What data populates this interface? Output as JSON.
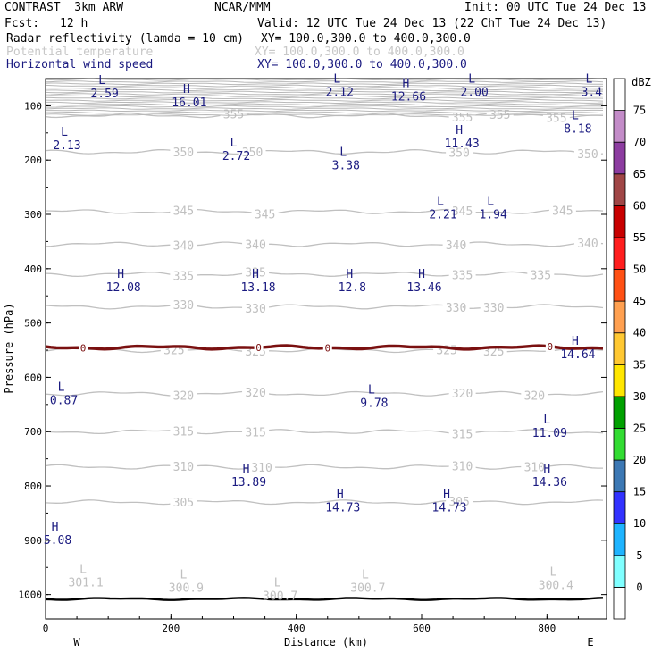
{
  "header": {
    "model": "CONTRAST  3km ARW",
    "org": "NCAR/MMM",
    "init": "Init: 00 UTC Tue 24 Dec 13",
    "fcst_label": "Fcst:",
    "fcst_value": "12 h",
    "valid": "Valid: 12 UTC Tue 24 Dec 13 (22 ChT Tue 24 Dec 13)",
    "fields": [
      {
        "name": "Radar reflectivity (lamda = 10 cm)",
        "xy": "XY= 100.0,300.0 to 400.0,300.0",
        "color": "#000000"
      },
      {
        "name": "Potential temperature",
        "xy": "XY= 100.0,300.0 to 400.0,300.0",
        "color": "#c8c8c8"
      },
      {
        "name": "Horizontal wind speed",
        "xy": "XY= 100.0,300.0 to 400.0,300.0",
        "color": "#1a1a80"
      }
    ]
  },
  "chart_data": {
    "type": "vertical cross-section contour",
    "xlabel": "Distance (km)",
    "ylabel": "Pressure (hPa)",
    "xlim": [
      0,
      895
    ],
    "ylim": [
      1045,
      50
    ],
    "xticks": [
      0,
      200,
      400,
      600,
      800
    ],
    "yticks": [
      100,
      200,
      300,
      400,
      500,
      600,
      700,
      800,
      900,
      1000
    ],
    "left_end_label": "W",
    "right_end_label": "E",
    "theta_contours": [
      {
        "value": 305,
        "p": 830,
        "labels": [
          {
            "x": 220,
            "text": "305"
          },
          {
            "x": 660,
            "text": "305"
          }
        ]
      },
      {
        "value": 310,
        "p": 765,
        "labels": [
          {
            "x": 220,
            "text": "310"
          },
          {
            "x": 345,
            "text": "310"
          },
          {
            "x": 665,
            "text": "310"
          },
          {
            "x": 780,
            "text": "310"
          }
        ]
      },
      {
        "value": 315,
        "p": 700,
        "labels": [
          {
            "x": 220,
            "text": "315"
          },
          {
            "x": 335,
            "text": "315"
          },
          {
            "x": 665,
            "text": "315"
          }
        ]
      },
      {
        "value": 320,
        "p": 630,
        "labels": [
          {
            "x": 220,
            "text": "320"
          },
          {
            "x": 335,
            "text": "320"
          },
          {
            "x": 665,
            "text": "320"
          },
          {
            "x": 780,
            "text": "320"
          }
        ]
      },
      {
        "value": 325,
        "p": 550,
        "labels": [
          {
            "x": 205,
            "text": "325"
          },
          {
            "x": 335,
            "text": "325"
          },
          {
            "x": 640,
            "text": "325"
          },
          {
            "x": 715,
            "text": "325"
          }
        ]
      },
      {
        "value": 330,
        "p": 470,
        "labels": [
          {
            "x": 220,
            "text": "330"
          },
          {
            "x": 335,
            "text": "330"
          },
          {
            "x": 655,
            "text": "330"
          },
          {
            "x": 715,
            "text": "330"
          }
        ]
      },
      {
        "value": 335,
        "p": 410,
        "labels": [
          {
            "x": 220,
            "text": "335"
          },
          {
            "x": 335,
            "text": "335"
          },
          {
            "x": 665,
            "text": "335"
          },
          {
            "x": 790,
            "text": "335"
          }
        ]
      },
      {
        "value": 340,
        "p": 355,
        "labels": [
          {
            "x": 220,
            "text": "340"
          },
          {
            "x": 335,
            "text": "340"
          },
          {
            "x": 655,
            "text": "340"
          },
          {
            "x": 865,
            "text": "340"
          }
        ]
      },
      {
        "value": 345,
        "p": 295,
        "labels": [
          {
            "x": 220,
            "text": "345"
          },
          {
            "x": 350,
            "text": "345"
          },
          {
            "x": 665,
            "text": "345"
          },
          {
            "x": 825,
            "text": "345"
          }
        ]
      },
      {
        "value": 350,
        "p": 185,
        "labels": [
          {
            "x": 220,
            "text": "350"
          },
          {
            "x": 330,
            "text": "350"
          },
          {
            "x": 660,
            "text": "350"
          },
          {
            "x": 865,
            "text": "350"
          }
        ]
      },
      {
        "value": 355,
        "p": 118,
        "labels": [
          {
            "x": 300,
            "text": "355"
          },
          {
            "x": 665,
            "text": "355"
          },
          {
            "x": 725,
            "text": "355"
          },
          {
            "x": 815,
            "text": "355"
          }
        ]
      }
    ],
    "reflectivity_zero_line": {
      "value": "0",
      "p": 545,
      "labels": [
        {
          "x": 60,
          "text": "0"
        },
        {
          "x": 340,
          "text": "0"
        },
        {
          "x": 450,
          "text": "0"
        },
        {
          "x": 805,
          "text": "0"
        }
      ]
    },
    "surface_pressure": 1008,
    "theta_extrema": [
      {
        "x": 60,
        "p": 960,
        "mark": "L",
        "value": "301.1"
      },
      {
        "x": 220,
        "p": 970,
        "mark": "L",
        "value": "300.9"
      },
      {
        "x": 370,
        "p": 985,
        "mark": "L",
        "value": "300.7"
      },
      {
        "x": 510,
        "p": 970,
        "mark": "L",
        "value": "300.7"
      },
      {
        "x": 810,
        "p": 965,
        "mark": "L",
        "value": "300.4"
      }
    ],
    "wind_extrema": [
      {
        "x": 90,
        "p": 60,
        "mark": "L",
        "value": "2.59"
      },
      {
        "x": 225,
        "p": 76,
        "mark": "H",
        "value": "16.01"
      },
      {
        "x": 465,
        "p": 57,
        "mark": "L",
        "value": "2.12"
      },
      {
        "x": 575,
        "p": 66,
        "mark": "H",
        "value": "12.66"
      },
      {
        "x": 680,
        "p": 57,
        "mark": "L",
        "value": "2.00"
      },
      {
        "x": 867,
        "p": 57,
        "mark": "L",
        "value": "3.4"
      },
      {
        "x": 845,
        "p": 125,
        "mark": "L",
        "value": "8.18"
      },
      {
        "x": 30,
        "p": 155,
        "mark": "L",
        "value": "2.13"
      },
      {
        "x": 660,
        "p": 152,
        "mark": "H",
        "value": "11.43"
      },
      {
        "x": 300,
        "p": 175,
        "mark": "L",
        "value": "2.72"
      },
      {
        "x": 475,
        "p": 192,
        "mark": "L",
        "value": "3.38"
      },
      {
        "x": 630,
        "p": 283,
        "mark": "L",
        "value": "2.21"
      },
      {
        "x": 710,
        "p": 283,
        "mark": "L",
        "value": "1.94"
      },
      {
        "x": 120,
        "p": 417,
        "mark": "H",
        "value": "12.08"
      },
      {
        "x": 335,
        "p": 417,
        "mark": "H",
        "value": "13.18"
      },
      {
        "x": 485,
        "p": 417,
        "mark": "H",
        "value": "12.8"
      },
      {
        "x": 600,
        "p": 417,
        "mark": "H",
        "value": "13.46"
      },
      {
        "x": 845,
        "p": 540,
        "mark": "H",
        "value": "14.64"
      },
      {
        "x": 25,
        "p": 625,
        "mark": "L",
        "value": "0.87"
      },
      {
        "x": 520,
        "p": 630,
        "mark": "L",
        "value": "9.78"
      },
      {
        "x": 800,
        "p": 685,
        "mark": "L",
        "value": "11.09"
      },
      {
        "x": 320,
        "p": 775,
        "mark": "H",
        "value": "13.89"
      },
      {
        "x": 800,
        "p": 775,
        "mark": "H",
        "value": "14.36"
      },
      {
        "x": 470,
        "p": 822,
        "mark": "H",
        "value": "14.73"
      },
      {
        "x": 640,
        "p": 822,
        "mark": "H",
        "value": "14.73"
      },
      {
        "x": 15,
        "p": 882,
        "mark": "H",
        "value": "5.08"
      }
    ],
    "colorbar": {
      "unit": "dBZ",
      "levels": [
        0,
        5,
        10,
        15,
        20,
        25,
        30,
        35,
        40,
        45,
        50,
        55,
        60,
        65,
        70,
        75
      ],
      "colors": [
        "#ffffff",
        "#80ffff",
        "#1eb4ff",
        "#3232ff",
        "#3c78b4",
        "#32dc32",
        "#00a000",
        "#ffe600",
        "#ffc832",
        "#ffa050",
        "#ff5014",
        "#ff1e1e",
        "#c80000",
        "#a04646",
        "#8c3ca0",
        "#c38cc8",
        "#ffffff"
      ]
    },
    "colors": {
      "theta": "#c0c0c0",
      "wind_label": "#1a1a80",
      "refl_zero": "#7a1010",
      "terrain": "#000000"
    }
  }
}
